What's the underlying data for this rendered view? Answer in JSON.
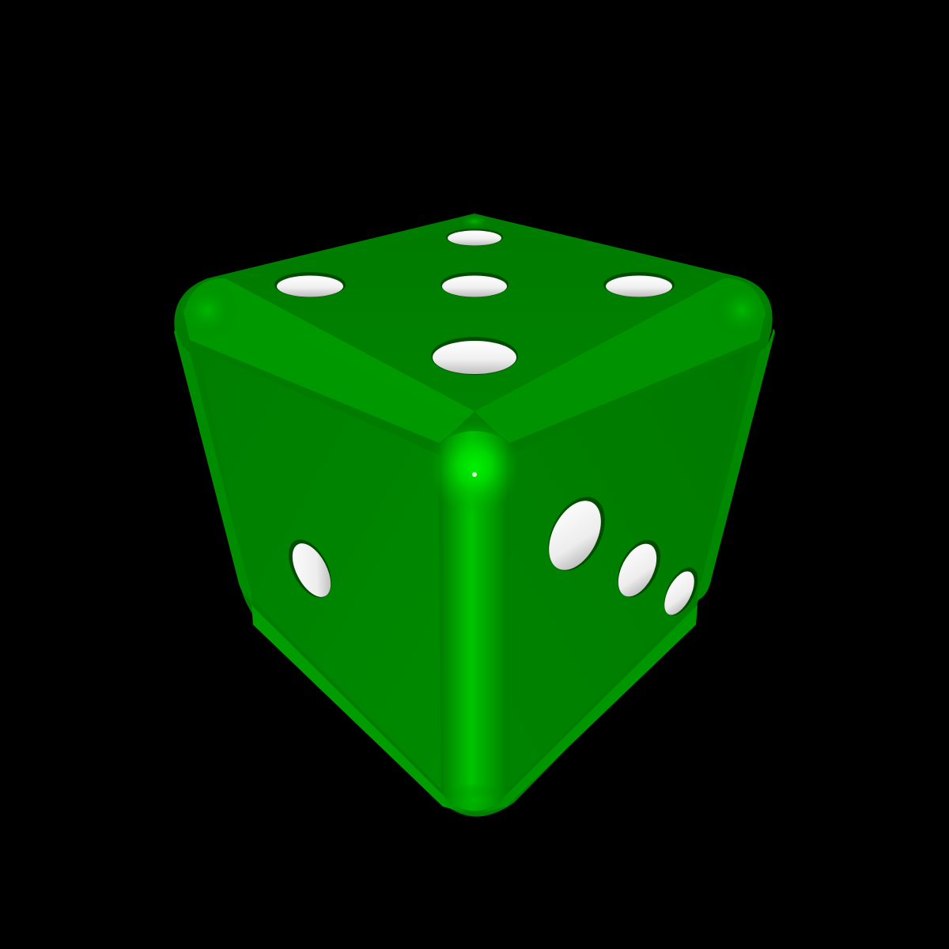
{
  "scene": {
    "subject": "die",
    "background_color": "#000000",
    "die_color": "#008a00",
    "pip_color": "#ffffff",
    "visible_faces": [
      {
        "face": "top",
        "pips": 5
      },
      {
        "face": "left",
        "pips": 1
      },
      {
        "face": "right",
        "pips": 3
      }
    ]
  }
}
